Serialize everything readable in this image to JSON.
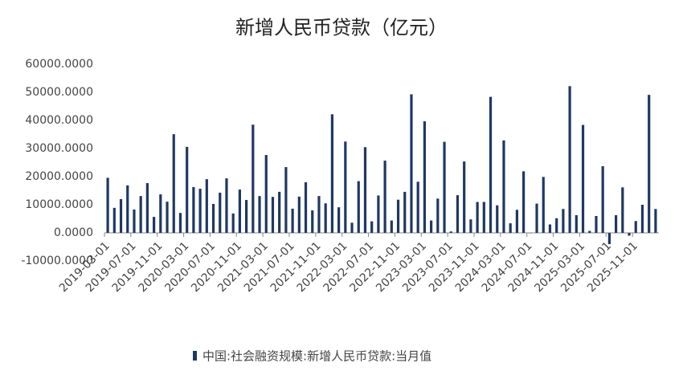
{
  "chart_data": {
    "type": "bar",
    "title": "新增人民币贷款（亿元）",
    "categories": [
      "2019-03-01",
      null,
      null,
      null,
      "2019-07-01",
      null,
      null,
      null,
      "2019-11-01",
      null,
      null,
      null,
      "2020-03-01",
      null,
      null,
      null,
      "2020-07-01",
      null,
      null,
      null,
      "2020-11-01",
      null,
      null,
      null,
      "2021-03-01",
      null,
      null,
      null,
      "2021-07-01",
      null,
      null,
      null,
      "2021-11-01",
      null,
      null,
      null,
      "2022-03-01",
      null,
      null,
      null,
      "2022-07-01",
      null,
      null,
      null,
      "2022-11-01",
      null,
      null,
      null,
      "2023-03-01",
      null,
      null,
      null,
      "2023-07-01",
      null,
      null,
      null,
      "2023-11-01",
      null,
      null,
      null,
      "2024-03-01",
      null,
      null,
      null,
      "2024-07-01",
      null,
      null,
      null,
      "2024-11-01",
      null,
      null,
      null,
      "2025-03-01",
      null,
      null,
      null,
      "2025-07-01",
      null,
      null,
      null,
      "2025-11-01",
      null,
      null,
      null
    ],
    "series": [
      {
        "name": "中国:社会融资规模:新增人民币贷款:当月值",
        "color": "#1f3864",
        "values": [
          19600,
          8900,
          12000,
          16900,
          8300,
          13100,
          17700,
          5700,
          13700,
          11100,
          35100,
          7100,
          30600,
          16300,
          15700,
          19100,
          10300,
          14300,
          19400,
          6900,
          15400,
          11700,
          38500,
          13100,
          27700,
          12800,
          14600,
          23400,
          8600,
          12900,
          18000,
          8000,
          13100,
          10500,
          42200,
          9100,
          32500,
          3600,
          18400,
          30500,
          4100,
          13300,
          25700,
          4400,
          11800,
          14600,
          49300,
          18200,
          39700,
          4400,
          12200,
          32400,
          500,
          13400,
          25400,
          4800,
          11000,
          11000,
          48400,
          9800,
          32900,
          3400,
          8200,
          21900,
          -100,
          10400,
          19900,
          3000,
          5200,
          8500,
          52200,
          6300,
          38400,
          700,
          6000,
          23700,
          -4000,
          6300,
          16200,
          -1000,
          4200,
          10000,
          49100,
          8500
        ]
      }
    ],
    "ylim": [
      -10000,
      60000
    ],
    "yticks": [
      {
        "value": -10000,
        "label": "-10000.0000"
      },
      {
        "value": 0,
        "label": "0.0000"
      },
      {
        "value": 10000,
        "label": "10000.0000"
      },
      {
        "value": 20000,
        "label": "20000.0000"
      },
      {
        "value": 30000,
        "label": "30000.0000"
      },
      {
        "value": 40000,
        "label": "40000.0000"
      },
      {
        "value": 50000,
        "label": "50000.0000"
      },
      {
        "value": 60000,
        "label": "60000.0000"
      }
    ],
    "grid": false,
    "legend": "bottom"
  }
}
